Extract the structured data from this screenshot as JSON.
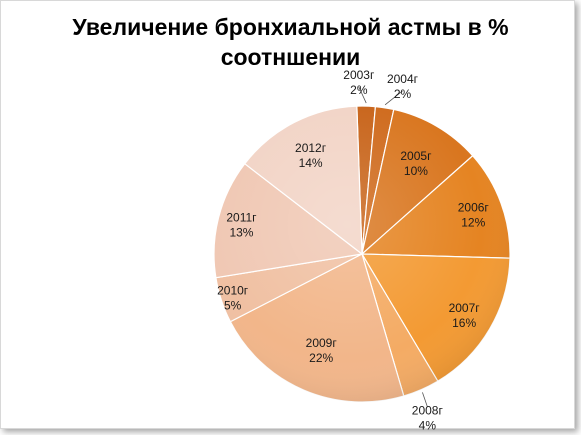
{
  "chart_data": {
    "type": "pie",
    "title_lines": [
      "Увеличение бронхиальной астмы в %",
      "соотншении"
    ],
    "categories": [
      "2003г",
      "2004г",
      "2005г",
      "2006г",
      "2007г",
      "2008г",
      "2009г",
      "2010г",
      "2011г",
      "2012г"
    ],
    "values": [
      2,
      2,
      10,
      12,
      16,
      4,
      22,
      5,
      13,
      14
    ],
    "value_labels": [
      "2%",
      "2%",
      "10%",
      "12%",
      "16%",
      "4%",
      "22%",
      "5%",
      "13%",
      "14%"
    ],
    "colors": [
      "#c8641a",
      "#cf6a1c",
      "#d9761f",
      "#e58422",
      "#f39a33",
      "#f4ab64",
      "#f2b68a",
      "#f0c0a2",
      "#f0c8b4",
      "#f2d4c6"
    ],
    "legend": "none"
  }
}
